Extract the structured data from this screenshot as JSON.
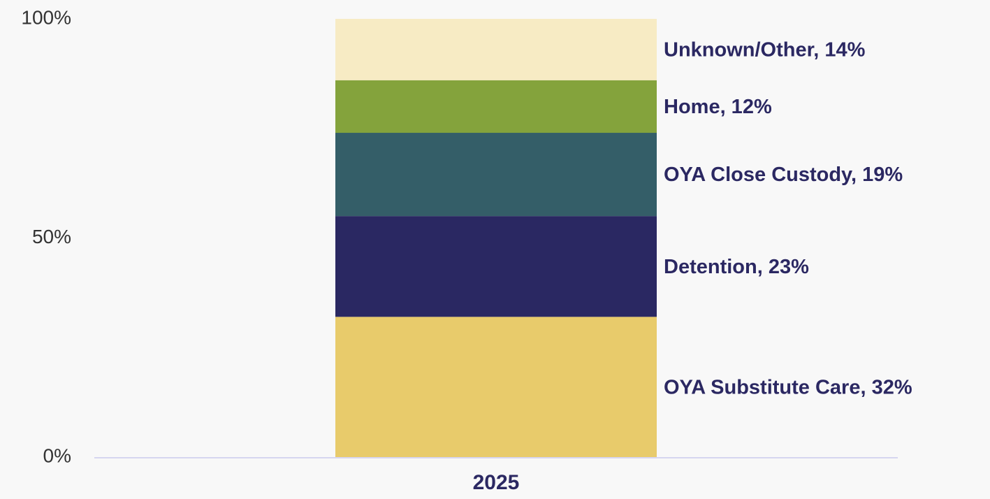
{
  "chart_data": {
    "type": "stacked_bar",
    "categories": [
      "2025"
    ],
    "series": [
      {
        "color": "#e8cb6b",
        "values": [
          32
        ],
        "value_labels": [
          "OYA Substitute Care, 32%"
        ]
      },
      {
        "color": "#2a2862",
        "values": [
          23
        ],
        "value_labels": [
          "Detention, 23%"
        ]
      },
      {
        "color": "#345e68",
        "values": [
          19
        ],
        "value_labels": [
          "OYA Close Custody, 19%"
        ]
      },
      {
        "color": "#84a33c",
        "values": [
          12
        ],
        "value_labels": [
          "Home, 12%"
        ]
      },
      {
        "color": "#f7ebc4",
        "values": [
          14
        ],
        "value_labels": [
          "Unknown/Other, 14%"
        ]
      }
    ],
    "ylim": [
      0,
      100
    ],
    "yticks": [
      {
        "value": 0,
        "label": "0%"
      },
      {
        "value": 50,
        "label": "50%"
      },
      {
        "value": 100,
        "label": "100%"
      }
    ]
  }
}
